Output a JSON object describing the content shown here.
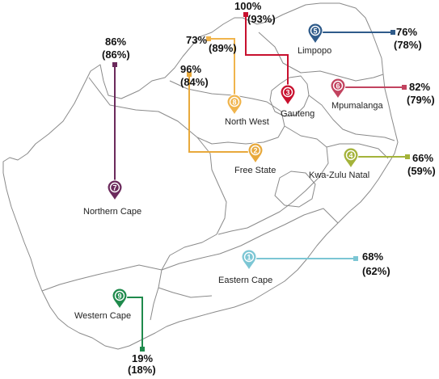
{
  "map": {
    "regions": [
      {
        "id": "eastern-cape",
        "name": "Eastern Cape",
        "pin_number": "1",
        "color": "#7cc6d4",
        "value": "68%",
        "value_secondary": "(62%)"
      },
      {
        "id": "free-state",
        "name": "Free State",
        "pin_number": "2",
        "color": "#e8a93c",
        "value": "96%",
        "value_secondary": "(84%)"
      },
      {
        "id": "gauteng",
        "name": "Gauteng",
        "pin_number": "3",
        "color": "#c8102e",
        "value": "100%",
        "value_secondary": "(93%)"
      },
      {
        "id": "kwazulu-natal",
        "name": "Kwa-Zulu Natal",
        "pin_number": "4",
        "color": "#a4b33a",
        "value": "66%",
        "value_secondary": "(59%)"
      },
      {
        "id": "limpopo",
        "name": "Limpopo",
        "pin_number": "5",
        "color": "#2f5b8a",
        "value": "76%",
        "value_secondary": "(78%)"
      },
      {
        "id": "mpumalanga",
        "name": "Mpumalanga",
        "pin_number": "6",
        "color": "#c2435f",
        "value": "82%",
        "value_secondary": "(79%)"
      },
      {
        "id": "northern-cape",
        "name": "Northern Cape",
        "pin_number": "7",
        "color": "#6b2a5c",
        "value": "86%",
        "value_secondary": "(86%)"
      },
      {
        "id": "north-west",
        "name": "North West",
        "pin_number": "8",
        "color": "#f0b44c",
        "value": "73%",
        "value_secondary": "(89%)"
      },
      {
        "id": "western-cape",
        "name": "Western Cape",
        "pin_number": "9",
        "color": "#1f8a4c",
        "value": "19%",
        "value_secondary": "(18%)"
      }
    ]
  }
}
